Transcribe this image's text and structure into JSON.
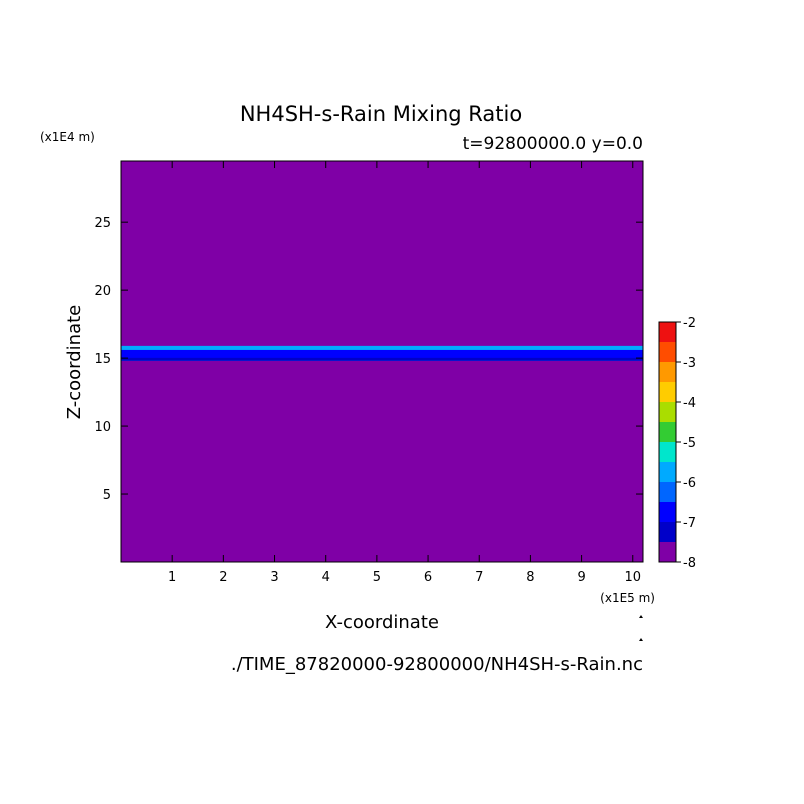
{
  "chart_data": {
    "type": "heatmap",
    "title": "NH4SH-s-Rain Mixing Ratio",
    "subtitle": "t=92800000.0 y=0.0",
    "xlabel": "X-coordinate",
    "ylabel": "Z-coordinate",
    "x_unit": "(x1E5 m)",
    "y_unit": "(x1E4 m)",
    "xlim": [
      0,
      10.2
    ],
    "ylim": [
      0,
      29.5
    ],
    "x_ticks": [
      1,
      2,
      3,
      4,
      5,
      6,
      7,
      8,
      9,
      10
    ],
    "y_ticks": [
      5,
      10,
      15,
      20,
      25
    ],
    "background_level": -8,
    "layer": {
      "z_bottom": 14.8,
      "z_top": 15.9,
      "level_low": -7,
      "level_high": -6,
      "inner_band_z": [
        15.0,
        15.6
      ]
    },
    "colorbar": {
      "levels": [
        -8,
        -7.5,
        -7,
        -6.5,
        -6,
        -5.5,
        -5,
        -4.5,
        -4,
        -3.5,
        -3,
        -2.5,
        -2
      ],
      "tick_labels": [
        "-2",
        "-3",
        "-4",
        "-5",
        "-6",
        "-7",
        "-8"
      ],
      "tick_values": [
        -2,
        -3,
        -4,
        -5,
        -6,
        -7,
        -8
      ],
      "colors": [
        "#7f00a6",
        "#0000c9",
        "#0000ff",
        "#0066ff",
        "#00aaff",
        "#00e6cc",
        "#33cc33",
        "#aadd00",
        "#ffcc00",
        "#ff9900",
        "#ff4d00",
        "#ee1111",
        "#ffaaaa"
      ]
    },
    "file_label": "./TIME_87820000-92800000/NH4SH-s-Rain.nc"
  }
}
